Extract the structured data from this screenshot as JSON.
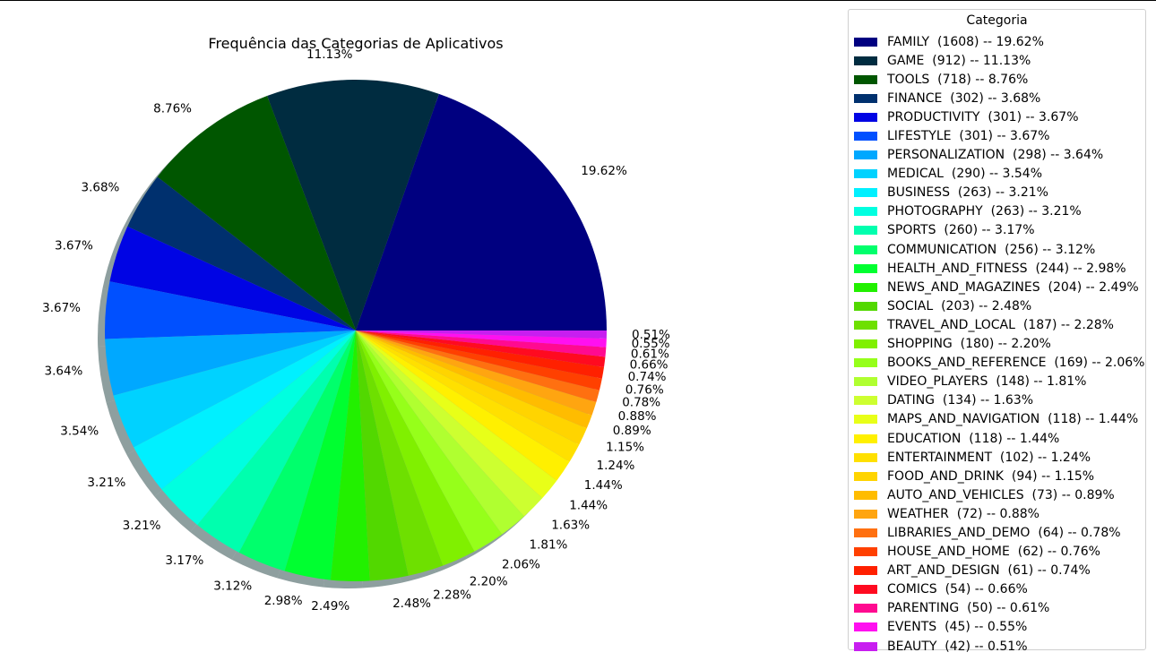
{
  "chart_data": {
    "type": "pie",
    "title": "Frequência das Categorias de Aplicativos",
    "legend_title": "Categoria",
    "legend_position": "right",
    "shadow": true,
    "start_angle_deg": 0,
    "direction": "counterclockwise",
    "slices": [
      {
        "category": "FAMILY",
        "count": 1608,
        "pct": 19.62,
        "pct_label": "19.62%",
        "color": "#000080",
        "legend": "FAMILY  (1608) -- 19.62%"
      },
      {
        "category": "GAME",
        "count": 912,
        "pct": 11.13,
        "pct_label": "11.13%",
        "color": "#002c40",
        "legend": "GAME  (912) -- 11.13%"
      },
      {
        "category": "TOOLS",
        "count": 718,
        "pct": 8.76,
        "pct_label": "8.76%",
        "color": "#005600",
        "legend": "TOOLS  (718) -- 8.76%"
      },
      {
        "category": "FINANCE",
        "count": 302,
        "pct": 3.68,
        "pct_label": "3.68%",
        "color": "#00306e",
        "legend": "FINANCE  (302) -- 3.68%"
      },
      {
        "category": "PRODUCTIVITY",
        "count": 301,
        "pct": 3.67,
        "pct_label": "3.67%",
        "color": "#0004e4",
        "legend": "PRODUCTIVITY  (301) -- 3.67%"
      },
      {
        "category": "LIFESTYLE",
        "count": 301,
        "pct": 3.67,
        "pct_label": "3.67%",
        "color": "#0050ff",
        "legend": "LIFESTYLE  (301) -- 3.67%"
      },
      {
        "category": "PERSONALIZATION",
        "count": 298,
        "pct": 3.64,
        "pct_label": "3.64%",
        "color": "#00a8ff",
        "legend": "PERSONALIZATION  (298) -- 3.64%"
      },
      {
        "category": "MEDICAL",
        "count": 290,
        "pct": 3.54,
        "pct_label": "3.54%",
        "color": "#00d2ff",
        "legend": "MEDICAL  (290) -- 3.54%"
      },
      {
        "category": "BUSINESS",
        "count": 263,
        "pct": 3.21,
        "pct_label": "3.21%",
        "color": "#00f0ff",
        "legend": "BUSINESS  (263) -- 3.21%"
      },
      {
        "category": "PHOTOGRAPHY",
        "count": 263,
        "pct": 3.21,
        "pct_label": "3.21%",
        "color": "#00ffe0",
        "legend": "PHOTOGRAPHY  (263) -- 3.21%"
      },
      {
        "category": "SPORTS",
        "count": 260,
        "pct": 3.17,
        "pct_label": "3.17%",
        "color": "#00ffae",
        "legend": "SPORTS  (260) -- 3.17%"
      },
      {
        "category": "COMMUNICATION",
        "count": 256,
        "pct": 3.12,
        "pct_label": "3.12%",
        "color": "#00ff6c",
        "legend": "COMMUNICATION  (256) -- 3.12%"
      },
      {
        "category": "HEALTH_AND_FITNESS",
        "count": 244,
        "pct": 2.98,
        "pct_label": "2.98%",
        "color": "#00ff30",
        "legend": "HEALTH_AND_FITNESS  (244) -- 2.98%"
      },
      {
        "category": "NEWS_AND_MAGAZINES",
        "count": 204,
        "pct": 2.49,
        "pct_label": "2.49%",
        "color": "#22f000",
        "legend": "NEWS_AND_MAGAZINES  (204) -- 2.49%"
      },
      {
        "category": "SOCIAL",
        "count": 203,
        "pct": 2.48,
        "pct_label": "2.48%",
        "color": "#52d800",
        "legend": "SOCIAL  (203) -- 2.48%"
      },
      {
        "category": "TRAVEL_AND_LOCAL",
        "count": 187,
        "pct": 2.28,
        "pct_label": "2.28%",
        "color": "#6ee000",
        "legend": "TRAVEL_AND_LOCAL  (187) -- 2.28%"
      },
      {
        "category": "SHOPPING",
        "count": 180,
        "pct": 2.2,
        "pct_label": "2.20%",
        "color": "#80f000",
        "legend": "SHOPPING  (180) -- 2.20%"
      },
      {
        "category": "BOOKS_AND_REFERENCE",
        "count": 169,
        "pct": 2.06,
        "pct_label": "2.06%",
        "color": "#96ff1a",
        "legend": "BOOKS_AND_REFERENCE  (169) -- 2.06%"
      },
      {
        "category": "VIDEO_PLAYERS",
        "count": 148,
        "pct": 1.81,
        "pct_label": "1.81%",
        "color": "#b0ff30",
        "legend": "VIDEO_PLAYERS  (148) -- 1.81%"
      },
      {
        "category": "DATING",
        "count": 134,
        "pct": 1.63,
        "pct_label": "1.63%",
        "color": "#cdff30",
        "legend": "DATING  (134) -- 1.63%"
      },
      {
        "category": "MAPS_AND_NAVIGATION",
        "count": 118,
        "pct": 1.44,
        "pct_label": "1.44%",
        "color": "#e8ff18",
        "legend": "MAPS_AND_NAVIGATION  (118) -- 1.44%"
      },
      {
        "category": "EDUCATION",
        "count": 118,
        "pct": 1.44,
        "pct_label": "1.44%",
        "color": "#fff000",
        "legend": "EDUCATION  (118) -- 1.44%"
      },
      {
        "category": "ENTERTAINMENT",
        "count": 102,
        "pct": 1.24,
        "pct_label": "1.24%",
        "color": "#ffe000",
        "legend": "ENTERTAINMENT  (102) -- 1.24%"
      },
      {
        "category": "FOOD_AND_DRINK",
        "count": 94,
        "pct": 1.15,
        "pct_label": "1.15%",
        "color": "#ffd400",
        "legend": "FOOD_AND_DRINK  (94) -- 1.15%"
      },
      {
        "category": "AUTO_AND_VEHICLES",
        "count": 73,
        "pct": 0.89,
        "pct_label": "0.89%",
        "color": "#ffbc00",
        "legend": "AUTO_AND_VEHICLES  (73) -- 0.89%"
      },
      {
        "category": "WEATHER",
        "count": 72,
        "pct": 0.88,
        "pct_label": "0.88%",
        "color": "#ffa510",
        "legend": "WEATHER  (72) -- 0.88%"
      },
      {
        "category": "LIBRARIES_AND_DEMO",
        "count": 64,
        "pct": 0.78,
        "pct_label": "0.78%",
        "color": "#ff7010",
        "legend": "LIBRARIES_AND_DEMO  (64) -- 0.78%"
      },
      {
        "category": "HOUSE_AND_HOME",
        "count": 62,
        "pct": 0.76,
        "pct_label": "0.76%",
        "color": "#ff4000",
        "legend": "HOUSE_AND_HOME  (62) -- 0.76%"
      },
      {
        "category": "ART_AND_DESIGN",
        "count": 61,
        "pct": 0.74,
        "pct_label": "0.74%",
        "color": "#ff2000",
        "legend": "ART_AND_DESIGN  (61) -- 0.74%"
      },
      {
        "category": "COMICS",
        "count": 54,
        "pct": 0.66,
        "pct_label": "0.66%",
        "color": "#ff0a20",
        "legend": "COMICS  (54) -- 0.66%"
      },
      {
        "category": "PARENTING",
        "count": 50,
        "pct": 0.61,
        "pct_label": "0.61%",
        "color": "#ff0a90",
        "legend": "PARENTING  (50) -- 0.61%"
      },
      {
        "category": "EVENTS",
        "count": 45,
        "pct": 0.55,
        "pct_label": "0.55%",
        "color": "#ff10f0",
        "legend": "EVENTS  (45) -- 0.55%"
      },
      {
        "category": "BEAUTY",
        "count": 42,
        "pct": 0.51,
        "pct_label": "0.51%",
        "color": "#c81ef0",
        "legend": "BEAUTY  (42) -- 0.51%"
      }
    ]
  }
}
